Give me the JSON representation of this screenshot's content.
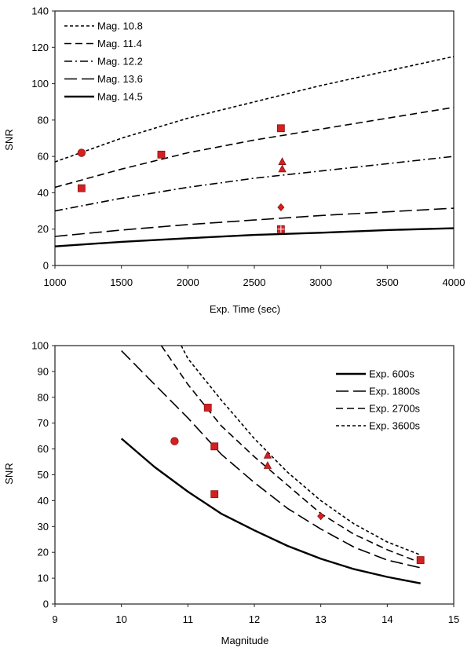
{
  "chart_data": [
    {
      "type": "line",
      "title": "",
      "xlabel": "Exp. Time (sec)",
      "ylabel": "SNR",
      "xlim": [
        1000,
        4000
      ],
      "ylim": [
        0,
        140
      ],
      "xticks": [
        1000,
        1500,
        2000,
        2500,
        3000,
        3500,
        4000
      ],
      "yticks": [
        0,
        20,
        40,
        60,
        80,
        100,
        120,
        140
      ],
      "grid": false,
      "legend_position": "top-left",
      "series": [
        {
          "name": "Mag. 10.8",
          "style": "short-dash",
          "color": "#000000",
          "x": [
            1000,
            1500,
            2000,
            2500,
            3000,
            3500,
            4000
          ],
          "y": [
            57,
            70,
            81,
            90,
            99,
            107,
            115
          ]
        },
        {
          "name": "Mag. 11.4",
          "style": "dash",
          "color": "#000000",
          "x": [
            1000,
            1500,
            2000,
            2500,
            3000,
            3500,
            4000
          ],
          "y": [
            43,
            53,
            62,
            69,
            75,
            81,
            87
          ]
        },
        {
          "name": "Mag. 12.2",
          "style": "dash-dot",
          "color": "#000000",
          "x": [
            1000,
            1500,
            2000,
            2500,
            3000,
            3500,
            4000
          ],
          "y": [
            30,
            37,
            43,
            48,
            52,
            56,
            60
          ]
        },
        {
          "name": "Mag. 13.6",
          "style": "long-dash",
          "color": "#000000",
          "x": [
            1000,
            1500,
            2000,
            2500,
            3000,
            3500,
            4000
          ],
          "y": [
            16,
            19.5,
            22.5,
            25,
            27.5,
            29.5,
            31.5
          ]
        },
        {
          "name": "Mag. 14.5",
          "style": "solid",
          "color": "#000000",
          "x": [
            1000,
            1500,
            2000,
            2500,
            3000,
            3500,
            4000
          ],
          "y": [
            10.5,
            13,
            15,
            16.8,
            18,
            19.5,
            20.5
          ]
        }
      ],
      "points": [
        {
          "x": 1200,
          "y": 62,
          "marker": "circle"
        },
        {
          "x": 1200,
          "y": 42.5,
          "marker": "square"
        },
        {
          "x": 1800,
          "y": 61,
          "marker": "square"
        },
        {
          "x": 2700,
          "y": 75.5,
          "marker": "square"
        },
        {
          "x": 2710,
          "y": 57,
          "marker": "triangle"
        },
        {
          "x": 2710,
          "y": 53,
          "marker": "triangle"
        },
        {
          "x": 2700,
          "y": 32,
          "marker": "diamond"
        },
        {
          "x": 2700,
          "y": 20,
          "marker": "square-cross"
        }
      ],
      "marker_color": "#d42020"
    },
    {
      "type": "line",
      "title": "",
      "xlabel": "Magnitude",
      "ylabel": "SNR",
      "xlim": [
        9,
        15
      ],
      "ylim": [
        0,
        100
      ],
      "xticks": [
        9,
        10,
        11,
        12,
        13,
        14,
        15
      ],
      "yticks": [
        0,
        10,
        20,
        30,
        40,
        50,
        60,
        70,
        80,
        90,
        100
      ],
      "grid": false,
      "legend_position": "top-right",
      "series": [
        {
          "name": "Exp. 600s",
          "style": "solid",
          "color": "#000000",
          "x": [
            10.0,
            10.5,
            11.0,
            11.5,
            12.0,
            12.5,
            13.0,
            13.5,
            14.0,
            14.5
          ],
          "y": [
            64,
            53,
            43.5,
            35,
            28.5,
            22.5,
            17.5,
            13.5,
            10.5,
            8
          ]
        },
        {
          "name": "Exp. 1800s",
          "style": "long-dash",
          "color": "#000000",
          "x": [
            10.0,
            10.5,
            11.0,
            11.5,
            12.0,
            12.5,
            13.0,
            13.5,
            14.0,
            14.5
          ],
          "y": [
            98,
            85,
            72,
            58,
            47,
            37,
            29,
            22,
            17,
            14
          ]
        },
        {
          "name": "Exp. 2700s",
          "style": "dash",
          "color": "#000000",
          "x": [
            10.6,
            11.0,
            11.5,
            12.0,
            12.5,
            13.0,
            13.5,
            14.0,
            14.5
          ],
          "y": [
            100,
            85,
            69,
            57,
            46,
            35,
            27,
            21,
            16
          ]
        },
        {
          "name": "Exp. 3600s",
          "style": "short-dash",
          "color": "#000000",
          "x": [
            10.9,
            11.0,
            11.5,
            12.0,
            12.5,
            13.0,
            13.5,
            14.0,
            14.5
          ],
          "y": [
            100,
            95,
            79,
            64,
            51,
            40,
            31,
            24,
            19
          ]
        }
      ],
      "points": [
        {
          "x": 10.8,
          "y": 63,
          "marker": "circle"
        },
        {
          "x": 11.3,
          "y": 76,
          "marker": "square"
        },
        {
          "x": 11.4,
          "y": 61,
          "marker": "square"
        },
        {
          "x": 11.4,
          "y": 42.5,
          "marker": "square"
        },
        {
          "x": 12.2,
          "y": 57.5,
          "marker": "triangle"
        },
        {
          "x": 12.2,
          "y": 53.5,
          "marker": "triangle"
        },
        {
          "x": 13.0,
          "y": 34,
          "marker": "diamond"
        },
        {
          "x": 14.5,
          "y": 17,
          "marker": "square"
        }
      ],
      "marker_color": "#d42020"
    }
  ]
}
